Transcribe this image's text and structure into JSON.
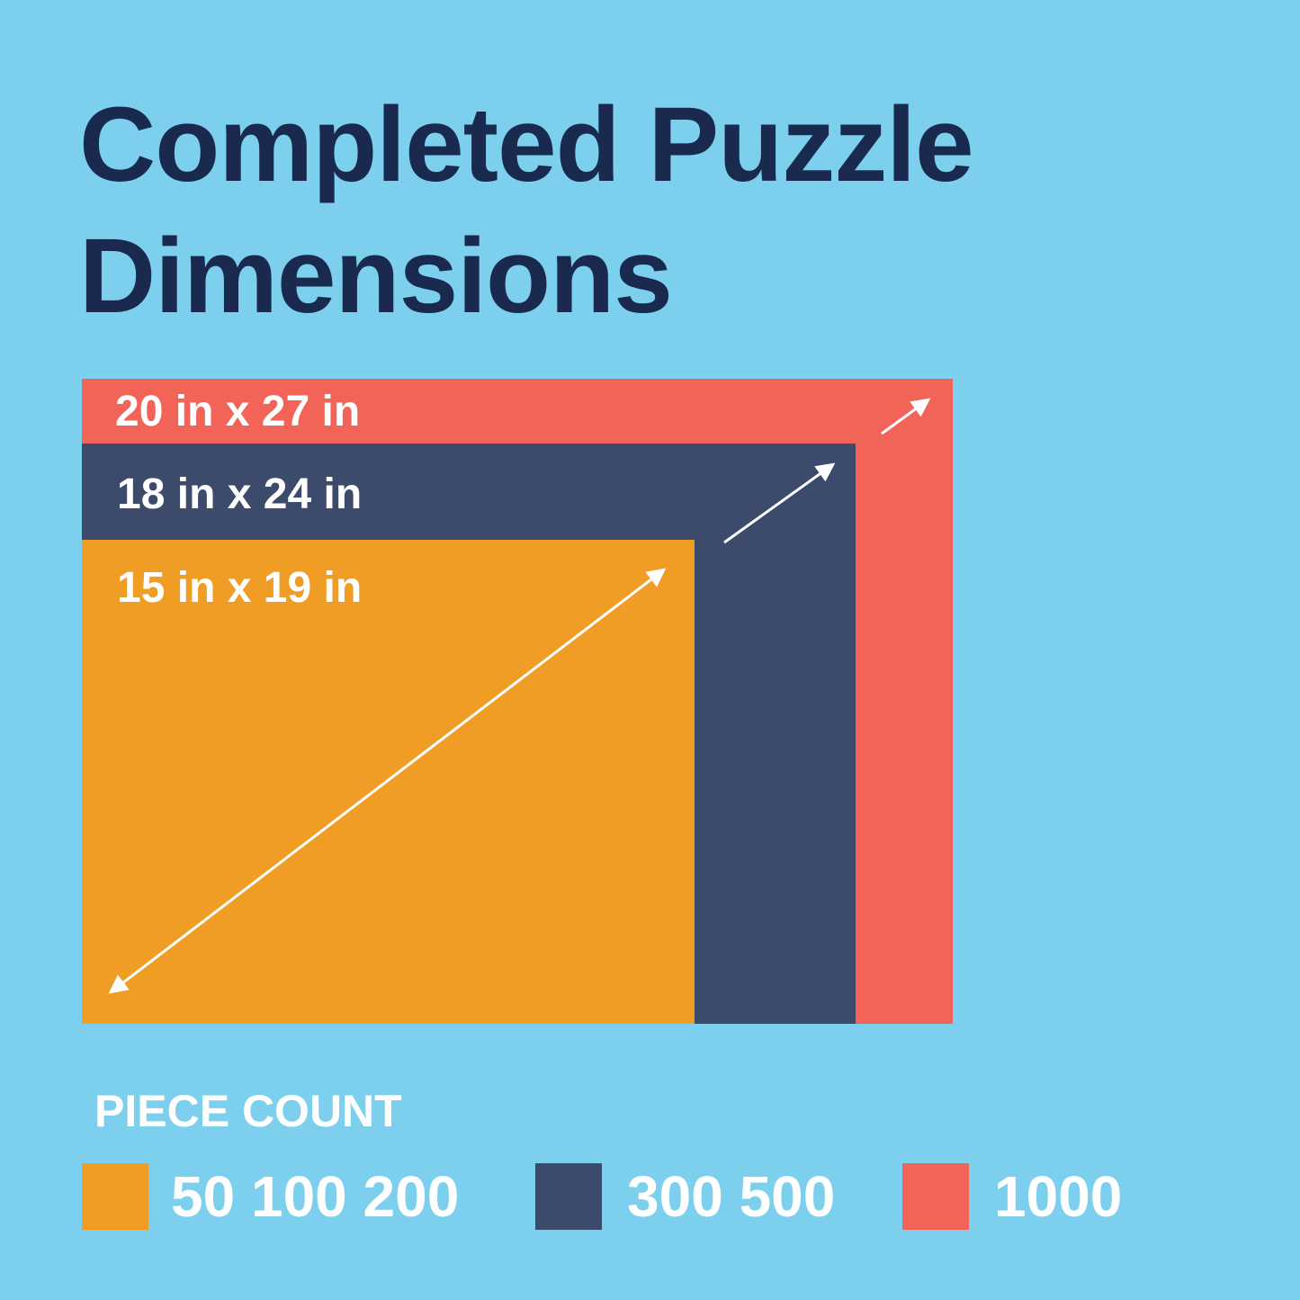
{
  "title_line1": "Completed Puzzle",
  "title_line2": "Dimensions",
  "colors": {
    "background": "#7dcfee",
    "title": "#1a2a4f",
    "small": "#f09d25",
    "medium": "#3c4a6c",
    "large": "#f26457"
  },
  "sizes": [
    {
      "label": "15 in x 19 in"
    },
    {
      "label": "18 in x 24 in"
    },
    {
      "label": "20 in x 27 in"
    }
  ],
  "legend": {
    "title": "PIECE COUNT",
    "items": [
      {
        "label": "50 100 200"
      },
      {
        "label": "300 500"
      },
      {
        "label": "1000"
      }
    ]
  }
}
